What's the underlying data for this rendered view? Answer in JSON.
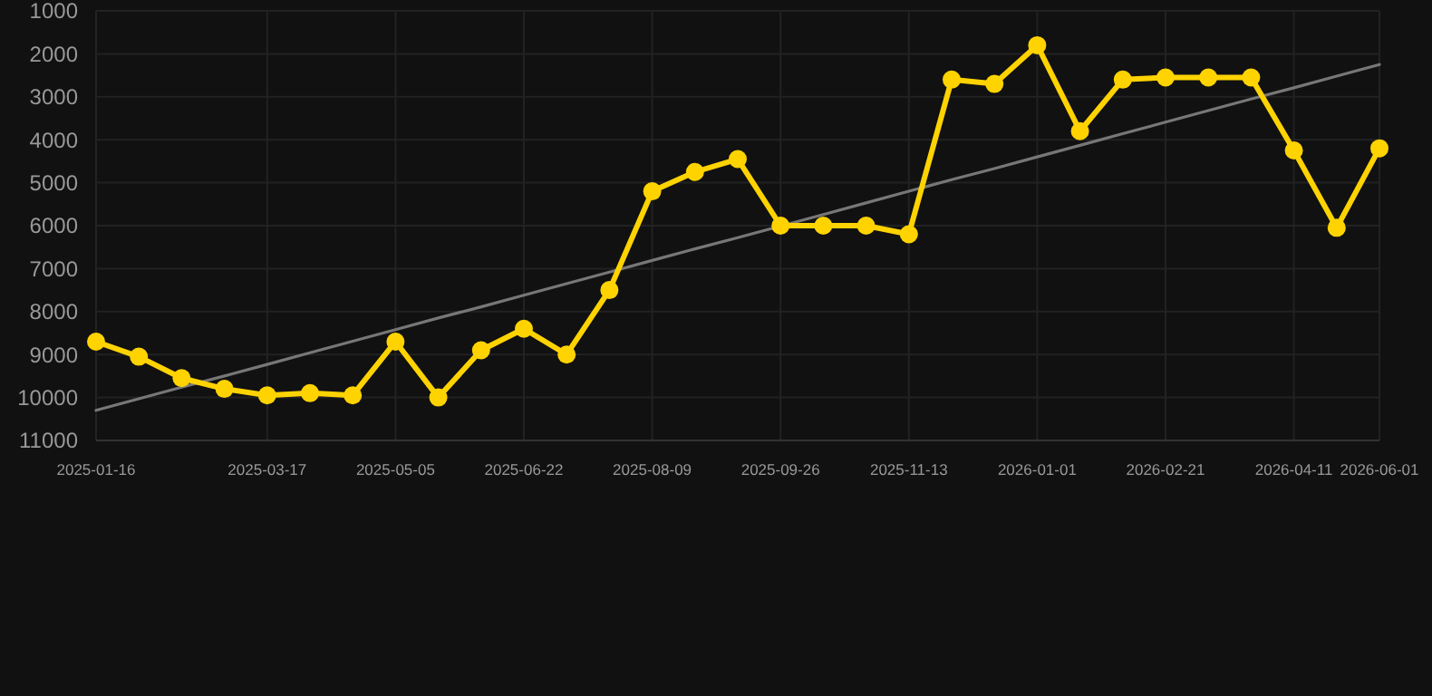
{
  "chart_data": {
    "type": "line",
    "categories": [
      "2025-01-16",
      null,
      null,
      null,
      "2025-03-17",
      null,
      null,
      "2025-05-05",
      null,
      null,
      "2025-06-22",
      null,
      null,
      "2025-08-09",
      null,
      null,
      "2025-09-26",
      null,
      null,
      "2025-11-13",
      null,
      null,
      "2026-01-01",
      null,
      null,
      "2026-02-21",
      null,
      null,
      "2026-04-11",
      null,
      "2026-06-01"
    ],
    "series": [
      {
        "color": "#ffd300",
        "marker": "circle",
        "values": [
          8700,
          9050,
          9550,
          9800,
          9950,
          9900,
          9950,
          8700,
          10000,
          8900,
          8400,
          9000,
          7500,
          5200,
          4750,
          4450,
          6000,
          6000,
          6000,
          6200,
          2600,
          2700,
          1800,
          3800,
          2600,
          2550,
          2550,
          2550,
          4250,
          6050,
          4200
        ]
      },
      {
        "type": "line",
        "color": "#777777",
        "marker": "none",
        "values": [
          10300,
          10030,
          9760,
          9500,
          9230,
          8960,
          8690,
          8420,
          8150,
          7890,
          7620,
          7350,
          7080,
          6810,
          6540,
          6280,
          6010,
          5740,
          5470,
          5200,
          4930,
          4670,
          4400,
          4130,
          3860,
          3590,
          3320,
          3050,
          2790,
          2520,
          2250
        ]
      }
    ],
    "ylim": [
      11000,
      1000
    ],
    "yticks": [
      1000,
      2000,
      3000,
      4000,
      5000,
      6000,
      7000,
      8000,
      9000,
      10000,
      11000
    ],
    "grid": true
  }
}
